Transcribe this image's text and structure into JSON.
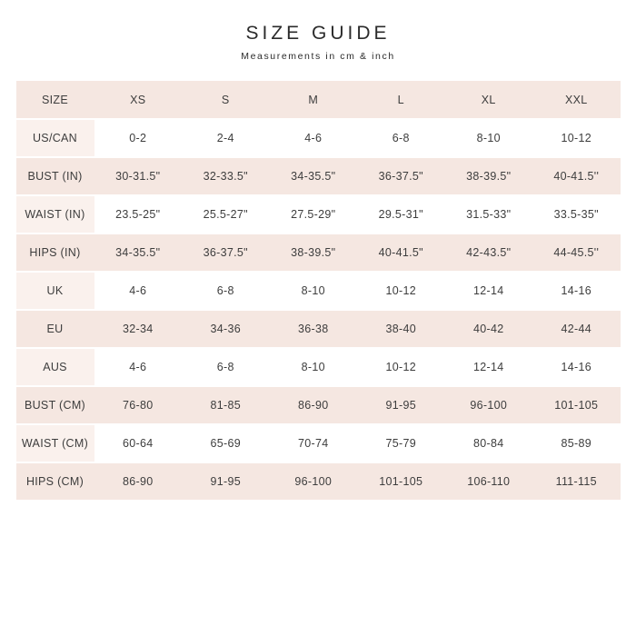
{
  "header": {
    "title": "SIZE GUIDE",
    "subtitle": "Measurements in cm & inch"
  },
  "colors": {
    "row_pink": "#f5e7e1",
    "label_pink": "#faf1ed",
    "text": "#3d3d3d",
    "background": "#ffffff"
  },
  "chart_data": {
    "type": "table",
    "title": "SIZE GUIDE",
    "subtitle": "Measurements in cm & inch",
    "columns": [
      "SIZE",
      "XS",
      "S",
      "M",
      "L",
      "XL",
      "XXL"
    ],
    "rows": [
      {
        "label": "US/CAN",
        "values": [
          "0-2",
          "2-4",
          "4-6",
          "6-8",
          "8-10",
          "10-12"
        ]
      },
      {
        "label": "BUST (IN)",
        "values": [
          "30-31.5\"",
          "32-33.5\"",
          "34-35.5\"",
          "36-37.5\"",
          "38-39.5\"",
          "40-41.5''"
        ]
      },
      {
        "label": "WAIST (IN)",
        "values": [
          "23.5-25\"",
          "25.5-27\"",
          "27.5-29\"",
          "29.5-31\"",
          "31.5-33\"",
          "33.5-35\""
        ]
      },
      {
        "label": "HIPS (IN)",
        "values": [
          "34-35.5\"",
          "36-37.5\"",
          "38-39.5\"",
          "40-41.5\"",
          "42-43.5\"",
          "44-45.5''"
        ]
      },
      {
        "label": "UK",
        "values": [
          "4-6",
          "6-8",
          "8-10",
          "10-12",
          "12-14",
          "14-16"
        ]
      },
      {
        "label": "EU",
        "values": [
          "32-34",
          "34-36",
          "36-38",
          "38-40",
          "40-42",
          "42-44"
        ]
      },
      {
        "label": "AUS",
        "values": [
          "4-6",
          "6-8",
          "8-10",
          "10-12",
          "12-14",
          "14-16"
        ]
      },
      {
        "label": "BUST (CM)",
        "values": [
          "76-80",
          "81-85",
          "86-90",
          "91-95",
          "96-100",
          "101-105"
        ]
      },
      {
        "label": "WAIST (CM)",
        "values": [
          "60-64",
          "65-69",
          "70-74",
          "75-79",
          "80-84",
          "85-89"
        ]
      },
      {
        "label": "HIPS (CM)",
        "values": [
          "86-90",
          "91-95",
          "96-100",
          "101-105",
          "106-110",
          "111-115"
        ]
      }
    ]
  }
}
